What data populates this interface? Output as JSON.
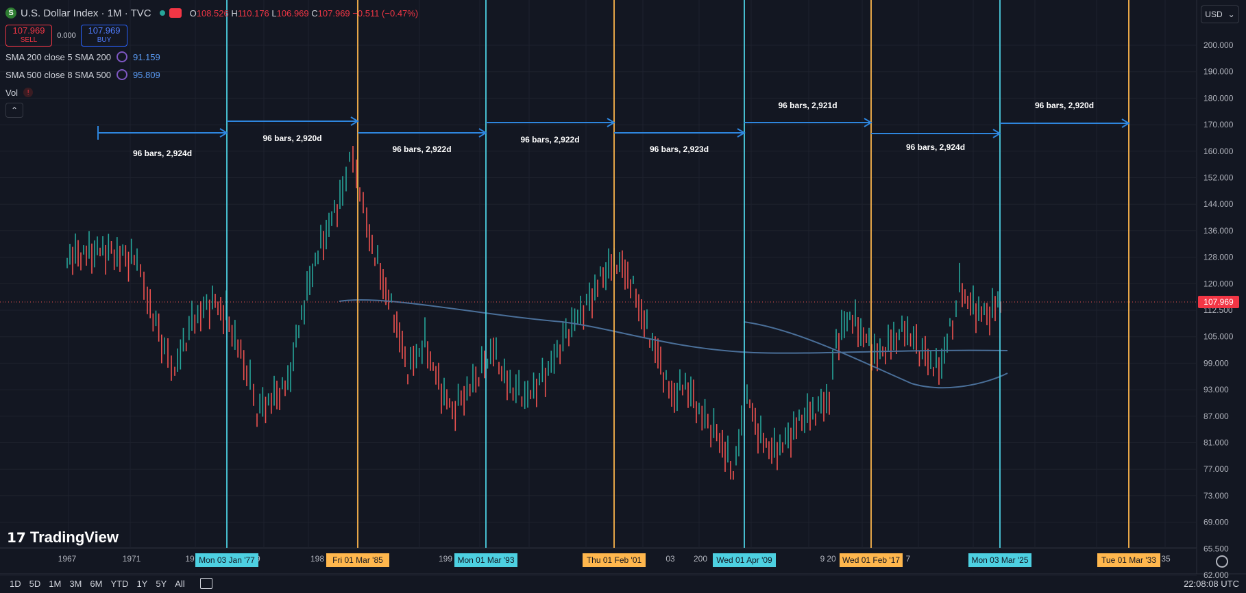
{
  "header": {
    "symbol_icon": "S",
    "title": "U.S. Dollar Index · 1M · TVC",
    "ohlc": {
      "o_label": "O",
      "o": "108.526",
      "h_label": "H",
      "h": "110.176",
      "l_label": "L",
      "l": "106.969",
      "c_label": "C",
      "c": "107.969",
      "change": "−0.511 (−0.47%)"
    },
    "sell": {
      "price": "107.969",
      "label": "SELL"
    },
    "spread": "0.000",
    "buy": {
      "price": "107.969",
      "label": "BUY"
    }
  },
  "indicators": [
    {
      "label": "SMA 200 close 5 SMA 200",
      "value": "91.159"
    },
    {
      "label": "SMA 500 close 8 SMA 500",
      "value": "95.809"
    }
  ],
  "vol": {
    "label": "Vol",
    "alert": "!"
  },
  "currency": {
    "label": "USD",
    "icon": "chevron-down-icon"
  },
  "price_axis": {
    "ticks": [
      "200.000",
      "190.000",
      "180.000",
      "170.000",
      "160.000",
      "152.000",
      "144.000",
      "136.000",
      "128.000",
      "120.000",
      "112.500",
      "105.000",
      "99.000",
      "93.000",
      "87.000",
      "81.000",
      "77.000",
      "73.000",
      "69.000",
      "65.500",
      "62.000"
    ],
    "last_price": "107.969"
  },
  "time_axis": {
    "years": [
      "1967",
      "1971",
      "19",
      "79",
      "198",
      "87",
      "199",
      "5",
      "19",
      "03",
      "200",
      "1",
      "20",
      "9",
      "20",
      "7",
      "203",
      "35"
    ]
  },
  "vlines": [
    {
      "label": "Mon 03 Jan '77",
      "color": "#4dd0e1"
    },
    {
      "label": "Fri 01 Mar '85",
      "color": "#ffb74d"
    },
    {
      "label": "Mon 01 Mar '93",
      "color": "#4dd0e1"
    },
    {
      "label": "Thu 01 Feb '01",
      "color": "#ffb74d"
    },
    {
      "label": "Wed 01 Apr '09",
      "color": "#4dd0e1"
    },
    {
      "label": "Wed 01 Feb '17",
      "color": "#ffb74d"
    },
    {
      "label": "Mon 03 Mar '25",
      "color": "#4dd0e1"
    },
    {
      "label": "Tue 01 Mar '33",
      "color": "#ffb74d"
    }
  ],
  "ranges": [
    "96 bars, 2,924d",
    "96 bars, 2,920d",
    "96 bars, 2,922d",
    "96 bars, 2,922d",
    "96 bars, 2,923d",
    "96 bars, 2,921d",
    "96 bars, 2,924d",
    "96 bars, 2,920d"
  ],
  "colors": {
    "up": "#26a69a",
    "down": "#ef5350",
    "sma": "#4a6f99",
    "measure": "#2e86de"
  },
  "logo": {
    "text": "TradingView"
  },
  "bottom_bar": {
    "ranges": [
      "1D",
      "5D",
      "1M",
      "3M",
      "6M",
      "YTD",
      "1Y",
      "5Y",
      "All"
    ],
    "calendar_icon": "calendar-icon",
    "clock": "22:08:08 UTC"
  }
}
